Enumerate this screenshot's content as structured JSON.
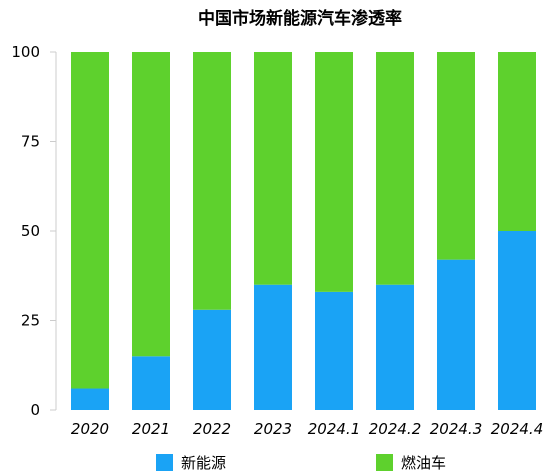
{
  "chart_data": {
    "type": "bar",
    "stacked": true,
    "title": "中国市场新能源汽车渗透率",
    "xlabel": "",
    "ylabel": "",
    "categories": [
      "2020",
      "2021",
      "2022",
      "2023",
      "2024.1",
      "2024.2",
      "2024.3",
      "2024.4"
    ],
    "series": [
      {
        "name": "新能源",
        "color": "#1aa3f5",
        "values": [
          6,
          15,
          28,
          35,
          33,
          35,
          42,
          50
        ]
      },
      {
        "name": "燃油车",
        "color": "#5ed12d",
        "values": [
          94,
          85,
          72,
          65,
          67,
          65,
          58,
          50
        ]
      }
    ],
    "ylim": [
      0,
      100
    ],
    "yticks": [
      0,
      25,
      50,
      75,
      100
    ],
    "grid": false,
    "legend_position": "bottom"
  }
}
